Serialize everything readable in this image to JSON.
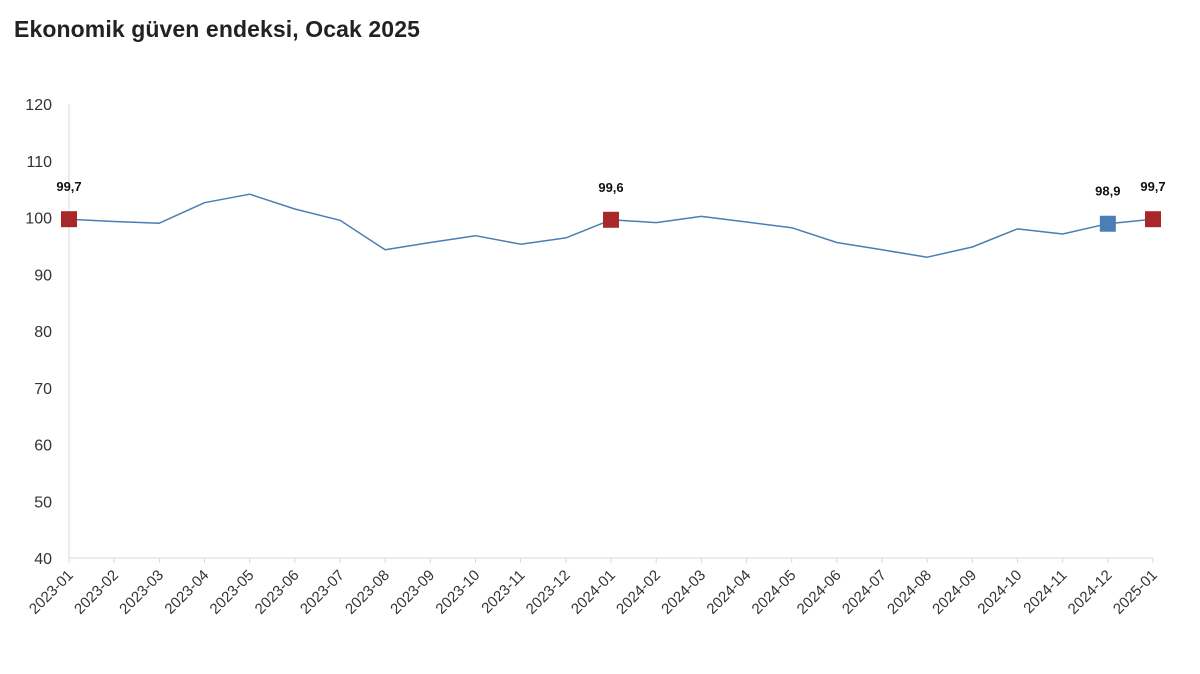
{
  "chart_data": {
    "type": "line",
    "title": "Ekonomik güven endeksi, Ocak 2025",
    "xlabel": "",
    "ylabel": "",
    "ylim": [
      40,
      120
    ],
    "yticks": [
      40,
      50,
      60,
      70,
      80,
      90,
      100,
      110,
      120
    ],
    "grid": false,
    "categories": [
      "2023-01",
      "2023-02",
      "2023-03",
      "2023-04",
      "2023-05",
      "2023-06",
      "2023-07",
      "2023-08",
      "2023-09",
      "2023-10",
      "2023-11",
      "2023-12",
      "2024-01",
      "2024-02",
      "2024-03",
      "2024-04",
      "2024-05",
      "2024-06",
      "2024-07",
      "2024-08",
      "2024-09",
      "2024-10",
      "2024-11",
      "2024-12",
      "2025-01"
    ],
    "series": [
      {
        "values": [
          99.7,
          99.3,
          99.0,
          102.6,
          104.1,
          101.5,
          99.5,
          94.3,
          95.6,
          96.8,
          95.3,
          96.4,
          99.6,
          99.1,
          100.2,
          99.2,
          98.2,
          95.6,
          94.3,
          93.0,
          94.8,
          98.0,
          97.1,
          98.9,
          99.7
        ],
        "color": "#4a7eb5"
      }
    ],
    "markers": [
      {
        "index": 0,
        "value": 99.7,
        "label": "99,7",
        "color": "#a8282a"
      },
      {
        "index": 12,
        "value": 99.6,
        "label": "99,6",
        "color": "#a8282a"
      },
      {
        "index": 23,
        "value": 98.9,
        "label": "98,9",
        "color": "#4a7eb5"
      },
      {
        "index": 24,
        "value": 99.7,
        "label": "99,7",
        "color": "#a8282a"
      }
    ]
  }
}
